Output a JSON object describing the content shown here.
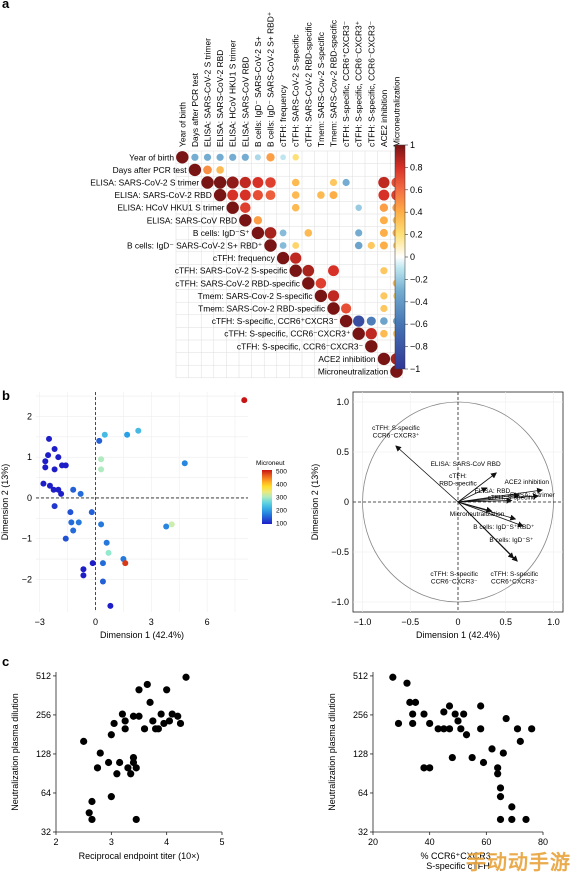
{
  "panel_labels": [
    "a",
    "b",
    "c"
  ],
  "watermark": "手动动手游",
  "chart_data": [
    {
      "type": "heatmap",
      "variables": [
        "Year of birth",
        "Days after PCR test",
        "ELISA: SARS-CoV-2 S trimer",
        "ELISA: SARS-CoV-2 RBD",
        "ELISA: HCoV HKU1 S trimer",
        "ELISA: SARS-CoV RBD",
        "B cells: IgD⁻S⁺",
        "B cells: IgD⁻ SARS-CoV-2 S+ RBD⁺",
        "cTFH: frequency",
        "cTFH: SARS-CoV-2 S-specific",
        "cTFH: SARS-CoV-2 RBD-specific",
        "Tmem: SARS-Cov-2 S-specific",
        "Tmem: SARS-Cov-2 RBD-specific",
        "cTFH: S-specific, CCR6⁺CXCR3⁻",
        "cTFH: S-specific, CCR6⁻CXCR3⁺",
        "cTFH: S-specific, CCR6⁻CXCR3⁻",
        "ACE2 inhibition",
        "Microneutralization"
      ],
      "column_labels": [
        "Year of birth",
        "Days after PCR test",
        "ELISA: SARS-CoV-2 S trimer",
        "ELISA: SARS-CoV-2 RBD",
        "ELISA: HCoV HKU1 S trimer",
        "ELISA: SARS-CoV RBD",
        "B cells: IgD⁻ SARS-CoV-2 S+",
        "B cells: IgD⁻ SARS-CoV-2 S+ RBD⁺",
        "cTFH: frequency",
        "cTFH: SARS-CoV-2 S-specific",
        "cTFH: SARS-CoV-2 RBD-specific",
        "Tmem: SARS-Cov-2 S-specific",
        "Tmem: SARS-Cov-2 RBD-specific",
        "cTFH: S-specific, CCR6⁺CXCR3⁻",
        "cTFH: S-specific, CCR6⁻CXCR3⁺",
        "cTFH: S-specific, CCR6⁻CXCR3⁻",
        "ACE2 inhibition",
        "Microneutralization"
      ],
      "cells": [
        [
          0,
          1,
          -0.3
        ],
        [
          0,
          2,
          -0.3
        ],
        [
          0,
          3,
          -0.3
        ],
        [
          0,
          4,
          -0.3
        ],
        [
          0,
          5,
          -0.3
        ],
        [
          0,
          6,
          -0.15
        ],
        [
          0,
          7,
          0.45
        ],
        [
          0,
          8,
          -0.1
        ],
        [
          0,
          9,
          0.2
        ],
        [
          1,
          2,
          0.5
        ],
        [
          1,
          3,
          0.35
        ],
        [
          2,
          3,
          1.0
        ],
        [
          2,
          4,
          0.95
        ],
        [
          2,
          5,
          0.85
        ],
        [
          2,
          6,
          0.8
        ],
        [
          2,
          7,
          0.75
        ],
        [
          2,
          9,
          0.35
        ],
        [
          2,
          12,
          0.3
        ],
        [
          2,
          13,
          -0.3
        ],
        [
          2,
          16,
          0.85
        ],
        [
          2,
          17,
          0.7
        ],
        [
          3,
          4,
          0.8
        ],
        [
          3,
          5,
          0.8
        ],
        [
          3,
          6,
          0.7
        ],
        [
          3,
          7,
          0.65
        ],
        [
          3,
          9,
          0.35
        ],
        [
          3,
          11,
          0.35
        ],
        [
          3,
          12,
          0.4
        ],
        [
          3,
          16,
          0.8
        ],
        [
          3,
          17,
          0.75
        ],
        [
          4,
          5,
          0.75
        ],
        [
          4,
          9,
          0.35
        ],
        [
          4,
          14,
          -0.2
        ],
        [
          4,
          16,
          0.45
        ],
        [
          4,
          17,
          0.45
        ],
        [
          5,
          6,
          0.45
        ],
        [
          5,
          16,
          0.4
        ],
        [
          5,
          17,
          0.35
        ],
        [
          6,
          7,
          0.9
        ],
        [
          6,
          8,
          -0.25
        ],
        [
          6,
          10,
          0.35
        ],
        [
          6,
          14,
          -0.3
        ],
        [
          6,
          16,
          0.4
        ],
        [
          6,
          17,
          0.4
        ],
        [
          7,
          8,
          -0.25
        ],
        [
          7,
          9,
          0.25
        ],
        [
          7,
          14,
          -0.35
        ],
        [
          7,
          15,
          0.3
        ],
        [
          7,
          16,
          0.4
        ],
        [
          7,
          17,
          0.3
        ],
        [
          8,
          9,
          0.85
        ],
        [
          9,
          10,
          0.9
        ],
        [
          9,
          12,
          0.8
        ],
        [
          9,
          16,
          0.3
        ],
        [
          10,
          11,
          0.75
        ],
        [
          10,
          17,
          0.35
        ],
        [
          11,
          12,
          0.85
        ],
        [
          11,
          16,
          0.3
        ],
        [
          11,
          17,
          0.25
        ],
        [
          12,
          13,
          0.7
        ],
        [
          12,
          16,
          0.3
        ],
        [
          13,
          14,
          -0.85
        ],
        [
          13,
          15,
          -0.55
        ],
        [
          13,
          16,
          -0.35
        ],
        [
          13,
          17,
          -0.3
        ],
        [
          14,
          15,
          0.85
        ],
        [
          14,
          16,
          0.35
        ],
        [
          14,
          17,
          0.3
        ],
        [
          16,
          17,
          0.9
        ]
      ],
      "colorbar_ticks": [
        "1",
        "0.8",
        "0.6",
        "0.4",
        "0.2",
        "0",
        "−0.2",
        "−0.4",
        "−0.6",
        "−0.8",
        "−1"
      ],
      "vlim": [
        -1,
        1
      ]
    },
    {
      "type": "scatter",
      "xlabel": "Dimension 1 (42.4%)",
      "ylabel": "Dimension 2 (13%)",
      "xticks": [
        "−3",
        "0",
        "3",
        "6"
      ],
      "yticks": [
        "−2",
        "−1",
        "0",
        "1",
        "2"
      ],
      "xlim": [
        -3.2,
        8.2
      ],
      "ylim": [
        -2.8,
        2.6
      ],
      "legend_title": "Microneut",
      "legend_ticks": [
        "500",
        "400",
        "300",
        "200",
        "100"
      ],
      "legend_range": [
        100,
        500
      ],
      "points": [
        [
          8.0,
          2.4,
          500
        ],
        [
          0.5,
          1.55,
          230
        ],
        [
          1.7,
          1.55,
          200
        ],
        [
          2.3,
          1.65,
          230
        ],
        [
          0.2,
          1.4,
          150
        ],
        [
          -2.5,
          1.45,
          60
        ],
        [
          -2.2,
          1.2,
          70
        ],
        [
          -2.55,
          1.05,
          70
        ],
        [
          -2.0,
          1.0,
          80
        ],
        [
          -2.7,
          0.9,
          70
        ],
        [
          -1.8,
          0.8,
          90
        ],
        [
          -1.6,
          0.8,
          80
        ],
        [
          -2.7,
          0.75,
          60
        ],
        [
          -2.2,
          0.7,
          60
        ],
        [
          4.8,
          0.85,
          180
        ],
        [
          0.3,
          0.95,
          300
        ],
        [
          0.3,
          0.7,
          300
        ],
        [
          -2.8,
          0.35,
          60
        ],
        [
          -2.45,
          0.3,
          70
        ],
        [
          -2.25,
          0.2,
          60
        ],
        [
          -2.0,
          0.2,
          70
        ],
        [
          -1.85,
          0.1,
          60
        ],
        [
          -1.2,
          0.2,
          150
        ],
        [
          -0.8,
          0.1,
          160
        ],
        [
          -2.2,
          -0.2,
          120
        ],
        [
          -1.35,
          -0.35,
          140
        ],
        [
          -0.2,
          -0.35,
          150
        ],
        [
          -1.3,
          -0.6,
          160
        ],
        [
          -0.9,
          -0.6,
          170
        ],
        [
          0.3,
          -0.65,
          170
        ],
        [
          -1.2,
          -0.8,
          160
        ],
        [
          3.8,
          -0.7,
          180
        ],
        [
          4.1,
          -0.65,
          310
        ],
        [
          -1.6,
          -1.0,
          140
        ],
        [
          0.6,
          -1.1,
          170
        ],
        [
          0.7,
          -1.35,
          290
        ],
        [
          1.5,
          -1.5,
          170
        ],
        [
          1.6,
          -1.6,
          480
        ],
        [
          -0.65,
          -1.75,
          60
        ],
        [
          -0.65,
          -1.9,
          60
        ],
        [
          -0.15,
          -1.6,
          60
        ],
        [
          0.4,
          -1.6,
          160
        ],
        [
          0.4,
          -2.05,
          150
        ],
        [
          0.8,
          -2.65,
          60
        ]
      ]
    },
    {
      "type": "biplot",
      "xlabel": "Dimension 1 (42.4%)",
      "ylabel": "Dimension 2 (13%)",
      "xticks": [
        "−1.0",
        "−0.5",
        "0",
        "0.5",
        "1.0"
      ],
      "yticks": [
        "−1.0",
        "−0.5",
        "0",
        "0.5",
        "1.0"
      ],
      "xlim": [
        -1.1,
        1.1
      ],
      "ylim": [
        -1.1,
        1.1
      ],
      "arrows": [
        {
          "x": -0.65,
          "y": 0.56,
          "label": "cTFH: S-specific\nCCR6⁻CXCR3⁺",
          "lx": -0.65,
          "ly": 0.72
        },
        {
          "x": 0.4,
          "y": 0.29,
          "label": "ELISA: SARS-CoV RBD",
          "lx": 0.08,
          "ly": 0.36
        },
        {
          "x": 0.3,
          "y": 0.14,
          "label": "cTFH:\nRBD-specific",
          "lx": 0.0,
          "ly": 0.24
        },
        {
          "x": 0.64,
          "y": 0.07,
          "label": "ELISA: RBD",
          "lx": 0.36,
          "ly": 0.09
        },
        {
          "x": 0.84,
          "y": 0.06,
          "label": "ELISA: S trimer",
          "lx": 0.78,
          "ly": 0.05
        },
        {
          "x": 0.88,
          "y": 0.12,
          "label": "ACE2 inhibition",
          "lx": 0.72,
          "ly": 0.18
        },
        {
          "x": 0.56,
          "y": 0.015,
          "label": "cTFH: S-specific",
          "lx": 0.56,
          "ly": 0.025
        },
        {
          "x": 0.35,
          "y": -0.09,
          "label": "Microneutralization",
          "lx": 0.2,
          "ly": -0.14
        },
        {
          "x": 0.6,
          "y": -0.17,
          "label": "B cells: IgD⁻S⁺RBD⁺",
          "lx": 0.48,
          "ly": -0.27
        },
        {
          "x": 0.68,
          "y": -0.24,
          "label": "B cells: IgD⁻S⁺",
          "lx": 0.56,
          "ly": -0.4
        },
        {
          "x": 0.58,
          "y": -0.56,
          "label": "cTFH: S-specific\nCCR6⁺CXCR3⁻",
          "lx": 0.59,
          "ly": -0.74
        },
        {
          "x": 0.62,
          "y": -0.59,
          "label": "cTFH: S-specific\nCCR6⁻CXCR3⁻",
          "lx": -0.04,
          "ly": -0.74
        }
      ]
    },
    {
      "type": "scatter",
      "xlabel": "Reciprocal endpoint titer (10×)",
      "ylabel": "Neutralization plasma dilution",
      "xticks": [
        "2",
        "3",
        "4",
        "5"
      ],
      "yticks": [
        "32",
        "64",
        "128",
        "256",
        "512"
      ],
      "xlim": [
        2.0,
        5.0
      ],
      "ylim_log2": [
        5,
        9.1
      ],
      "y_scale": "log2",
      "points": [
        [
          2.5,
          160
        ],
        [
          2.6,
          45
        ],
        [
          2.65,
          55
        ],
        [
          2.65,
          40
        ],
        [
          2.75,
          100
        ],
        [
          2.8,
          130
        ],
        [
          2.95,
          110
        ],
        [
          3.0,
          180
        ],
        [
          3.05,
          220
        ],
        [
          3.0,
          60
        ],
        [
          3.1,
          90
        ],
        [
          3.15,
          110
        ],
        [
          3.2,
          260
        ],
        [
          3.25,
          230
        ],
        [
          3.25,
          200
        ],
        [
          3.3,
          100
        ],
        [
          3.35,
          90
        ],
        [
          3.4,
          250
        ],
        [
          3.4,
          120
        ],
        [
          3.4,
          110
        ],
        [
          3.45,
          100
        ],
        [
          3.45,
          40
        ],
        [
          3.5,
          400
        ],
        [
          3.5,
          250
        ],
        [
          3.6,
          200
        ],
        [
          3.65,
          440
        ],
        [
          3.7,
          320
        ],
        [
          3.75,
          230
        ],
        [
          3.8,
          200
        ],
        [
          3.85,
          200
        ],
        [
          3.9,
          260
        ],
        [
          3.95,
          220
        ],
        [
          4.0,
          400
        ],
        [
          4.05,
          230
        ],
        [
          4.1,
          260
        ],
        [
          4.2,
          250
        ],
        [
          4.25,
          220
        ],
        [
          4.35,
          500
        ]
      ]
    },
    {
      "type": "scatter",
      "xlabel": "% CCR6⁺CXCR3⁻\nS-specific cTFH",
      "ylabel": "Neutralization plasma dilution",
      "xticks": [
        "20",
        "40",
        "60",
        "80"
      ],
      "yticks": [
        "32",
        "64",
        "128",
        "256",
        "512"
      ],
      "xlim": [
        20,
        80
      ],
      "ylim_log2": [
        5,
        9.1
      ],
      "y_scale": "log2",
      "points": [
        [
          27,
          500
        ],
        [
          29,
          220
        ],
        [
          32,
          450
        ],
        [
          33,
          320
        ],
        [
          34,
          220
        ],
        [
          34,
          260
        ],
        [
          35,
          320
        ],
        [
          38,
          260
        ],
        [
          38,
          100
        ],
        [
          40,
          220
        ],
        [
          40,
          100
        ],
        [
          43,
          200
        ],
        [
          45,
          200
        ],
        [
          45,
          270
        ],
        [
          47,
          200
        ],
        [
          47,
          300
        ],
        [
          48,
          120
        ],
        [
          49,
          260
        ],
        [
          50,
          230
        ],
        [
          51,
          200
        ],
        [
          52,
          260
        ],
        [
          53,
          180
        ],
        [
          55,
          120
        ],
        [
          58,
          300
        ],
        [
          58,
          200
        ],
        [
          59,
          110
        ],
        [
          62,
          140
        ],
        [
          64,
          100
        ],
        [
          64,
          90
        ],
        [
          65,
          70
        ],
        [
          65,
          60
        ],
        [
          65,
          40
        ],
        [
          66,
          130
        ],
        [
          67,
          240
        ],
        [
          69,
          50
        ],
        [
          69,
          40
        ],
        [
          71,
          200
        ],
        [
          72,
          160
        ],
        [
          74,
          40
        ],
        [
          76,
          200
        ]
      ]
    }
  ]
}
